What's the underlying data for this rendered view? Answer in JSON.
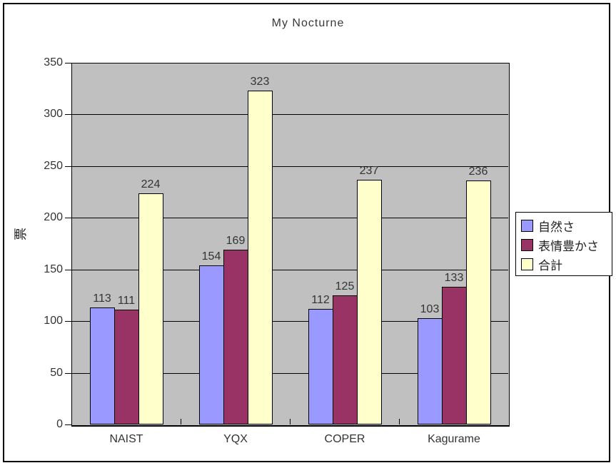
{
  "chart": {
    "title": "My Nocturne",
    "y_axis_title": "票"
  },
  "chart_data": {
    "type": "bar",
    "title": "My Nocturne",
    "categories": [
      "NAIST",
      "YQX",
      "COPER",
      "Kagurame"
    ],
    "series": [
      {
        "name": "自然さ",
        "color": "#9999FF",
        "values": [
          113,
          154,
          112,
          103
        ]
      },
      {
        "name": "表情豊かさ",
        "color": "#993366",
        "values": [
          111,
          169,
          125,
          133
        ]
      },
      {
        "name": "合計",
        "color": "#FFFFCC",
        "values": [
          224,
          323,
          237,
          236
        ]
      }
    ],
    "xlabel": "",
    "ylabel": "票",
    "ylim": [
      0,
      350
    ],
    "ytick_step": 50,
    "yticks": [
      0,
      50,
      100,
      150,
      200,
      250,
      300,
      350
    ],
    "grid": true,
    "data_labels": true,
    "legend_position": "right",
    "plot_background": "#C0C0C0",
    "gridline_color": "#000000"
  }
}
